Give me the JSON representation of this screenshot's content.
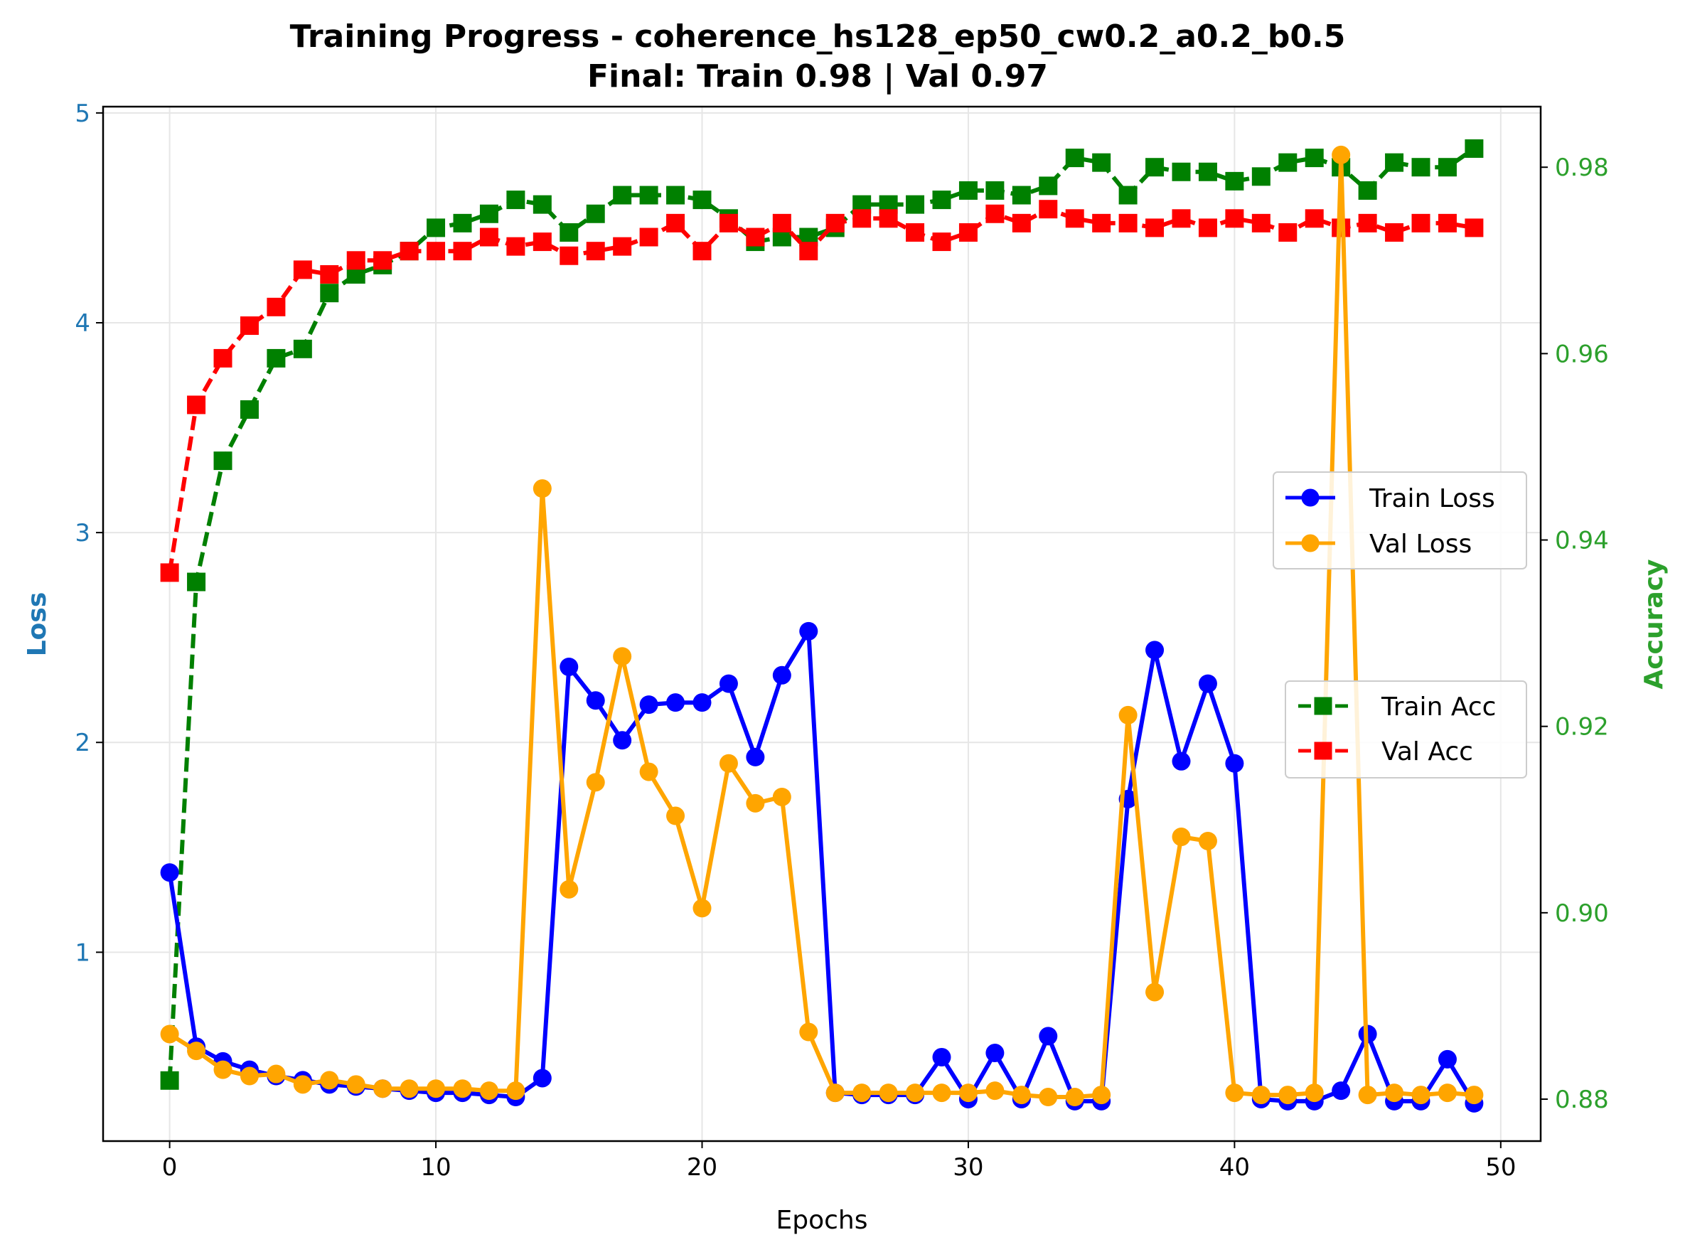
{
  "colors": {
    "train_loss": "#0000ff",
    "val_loss": "#ffa500",
    "train_acc": "#008000",
    "val_acc": "#ff0000",
    "left_axis": "#1f77b4",
    "right_axis": "#2ca02c",
    "grid": "#e6e6e6"
  },
  "chart_data": {
    "type": "line",
    "title": "Training Progress - coherence_hs128_ep50_cw0.2_a0.2_b0.5",
    "subtitle": "Final: Train 0.98 | Val 0.97",
    "xlabel": "Epochs",
    "ylabel_left": "Loss",
    "ylabel_right": "Accuracy",
    "xlim": [
      -2.5,
      51.5
    ],
    "ylim_left": [
      0.1,
      5.03
    ],
    "ylim_right": [
      0.8755,
      0.9865
    ],
    "x_ticks": [
      0,
      10,
      20,
      30,
      40,
      50
    ],
    "y_ticks_left": [
      1,
      2,
      3,
      4,
      5
    ],
    "y_ticks_right": [
      0.88,
      0.9,
      0.92,
      0.94,
      0.96,
      0.98
    ],
    "y_ticks_right_labels": [
      "0.88",
      "0.90",
      "0.92",
      "0.94",
      "0.96",
      "0.98"
    ],
    "grid": true,
    "legends": [
      {
        "placement": "right-middle-upper",
        "entries": [
          "Train Loss",
          "Val Loss"
        ]
      },
      {
        "placement": "right-middle-lower",
        "entries": [
          "Train Acc",
          "Val Acc"
        ]
      }
    ],
    "x": [
      0,
      1,
      2,
      3,
      4,
      5,
      6,
      7,
      8,
      9,
      10,
      11,
      12,
      13,
      14,
      15,
      16,
      17,
      18,
      19,
      20,
      21,
      22,
      23,
      24,
      25,
      26,
      27,
      28,
      29,
      30,
      31,
      32,
      33,
      34,
      35,
      36,
      37,
      38,
      39,
      40,
      41,
      42,
      43,
      44,
      45,
      46,
      47,
      48,
      49
    ],
    "series": [
      {
        "name": "Train Loss",
        "axis": "left",
        "style": "solid",
        "marker": "circle",
        "values": [
          1.38,
          0.55,
          0.48,
          0.44,
          0.41,
          0.39,
          0.37,
          0.36,
          0.35,
          0.34,
          0.33,
          0.33,
          0.32,
          0.31,
          0.4,
          2.36,
          2.2,
          2.01,
          2.18,
          2.19,
          2.19,
          2.28,
          1.93,
          2.32,
          2.53,
          0.33,
          0.32,
          0.32,
          0.32,
          0.5,
          0.3,
          0.52,
          0.3,
          0.6,
          0.29,
          0.29,
          1.73,
          2.44,
          1.91,
          2.28,
          1.9,
          0.3,
          0.29,
          0.29,
          0.34,
          0.61,
          0.29,
          0.29,
          0.49,
          0.28
        ]
      },
      {
        "name": "Val Loss",
        "axis": "left",
        "style": "solid",
        "marker": "circle",
        "values": [
          0.61,
          0.53,
          0.44,
          0.41,
          0.42,
          0.37,
          0.39,
          0.37,
          0.35,
          0.35,
          0.35,
          0.35,
          0.34,
          0.34,
          3.21,
          1.3,
          1.81,
          2.41,
          1.86,
          1.65,
          1.21,
          1.9,
          1.71,
          1.74,
          0.62,
          0.33,
          0.33,
          0.33,
          0.33,
          0.33,
          0.33,
          0.34,
          0.32,
          0.31,
          0.31,
          0.32,
          2.13,
          0.81,
          1.55,
          1.53,
          0.33,
          0.32,
          0.32,
          0.33,
          4.8,
          0.32,
          0.33,
          0.32,
          0.33,
          0.32
        ]
      },
      {
        "name": "Train Acc",
        "axis": "right",
        "style": "dashed",
        "marker": "square",
        "values": [
          0.882,
          0.9355,
          0.9485,
          0.954,
          0.9595,
          0.9605,
          0.9665,
          0.9685,
          0.9695,
          0.971,
          0.9735,
          0.974,
          0.975,
          0.9765,
          0.976,
          0.973,
          0.975,
          0.977,
          0.977,
          0.977,
          0.9765,
          0.9745,
          0.972,
          0.9725,
          0.9725,
          0.9735,
          0.976,
          0.976,
          0.976,
          0.9765,
          0.9775,
          0.9775,
          0.977,
          0.978,
          0.981,
          0.9805,
          0.977,
          0.98,
          0.9795,
          0.9795,
          0.9785,
          0.979,
          0.9805,
          0.981,
          0.98,
          0.9775,
          0.9805,
          0.98,
          0.98,
          0.982
        ]
      },
      {
        "name": "Val Acc",
        "axis": "right",
        "style": "dashed",
        "marker": "square",
        "values": [
          0.9365,
          0.9545,
          0.9595,
          0.963,
          0.965,
          0.969,
          0.9685,
          0.97,
          0.97,
          0.971,
          0.971,
          0.971,
          0.9725,
          0.9715,
          0.972,
          0.9705,
          0.971,
          0.9715,
          0.9725,
          0.974,
          0.971,
          0.974,
          0.9725,
          0.974,
          0.971,
          0.974,
          0.9745,
          0.9745,
          0.973,
          0.972,
          0.973,
          0.975,
          0.974,
          0.9755,
          0.9745,
          0.974,
          0.974,
          0.9735,
          0.9745,
          0.9735,
          0.9745,
          0.974,
          0.973,
          0.9745,
          0.9735,
          0.974,
          0.973,
          0.974,
          0.974,
          0.9735
        ]
      }
    ]
  }
}
